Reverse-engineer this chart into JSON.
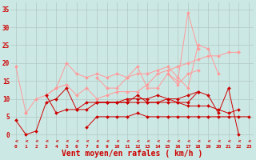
{
  "background_color": "#cce8e4",
  "grid_color": "#b0c8c4",
  "xlabel": "Vent moyen/en rafales ( km/h )",
  "xlabel_color": "#cc0000",
  "xlabel_fontsize": 7,
  "xtick_color": "#cc0000",
  "ytick_color": "#cc0000",
  "xlim": [
    -0.5,
    23.5
  ],
  "ylim": [
    -2.5,
    37
  ],
  "yticks": [
    0,
    5,
    10,
    15,
    20,
    25,
    30,
    35
  ],
  "xticks": [
    0,
    1,
    2,
    3,
    4,
    5,
    6,
    7,
    8,
    9,
    10,
    11,
    12,
    13,
    14,
    15,
    16,
    17,
    18,
    19,
    20,
    21,
    22,
    23
  ],
  "x_vals": [
    0,
    1,
    2,
    3,
    4,
    5,
    6,
    7,
    8,
    9,
    10,
    11,
    12,
    13,
    14,
    15,
    16,
    17,
    18,
    19,
    20,
    21,
    22,
    23
  ],
  "lines_dark": [
    [
      4,
      0,
      1,
      9,
      10,
      13,
      7,
      9,
      9,
      9,
      9,
      9,
      11,
      9,
      9,
      10,
      9,
      9,
      12,
      11,
      6,
      13,
      0,
      null
    ],
    [
      null,
      null,
      null,
      11,
      6,
      7,
      7,
      7,
      9,
      9,
      9,
      9,
      9,
      9,
      9,
      9,
      9,
      8,
      8,
      8,
      7,
      6,
      7,
      null
    ],
    [
      null,
      null,
      null,
      null,
      null,
      null,
      null,
      null,
      9,
      9,
      9,
      10,
      10,
      10,
      11,
      10,
      10,
      11,
      12,
      null,
      null,
      null,
      null,
      null
    ],
    [
      null,
      null,
      null,
      null,
      null,
      null,
      null,
      2,
      5,
      5,
      5,
      5,
      6,
      5,
      5,
      5,
      5,
      5,
      5,
      5,
      5,
      5,
      5,
      5
    ]
  ],
  "lines_light": [
    [
      19,
      6,
      null,
      11,
      13,
      20,
      17,
      16,
      17,
      16,
      17,
      16,
      17,
      17,
      18,
      19,
      16,
      13,
      25,
      24,
      17,
      null,
      23,
      null
    ],
    [
      null,
      null,
      null,
      null,
      null,
      null,
      null,
      null,
      null,
      null,
      null,
      null,
      null,
      null,
      null,
      17,
      15,
      34,
      24,
      null,
      null,
      null,
      null,
      null
    ],
    [
      null,
      null,
      null,
      null,
      null,
      null,
      null,
      null,
      16,
      13,
      13,
      16,
      19,
      13,
      13,
      17,
      14,
      17,
      18,
      null,
      null,
      null,
      null,
      null
    ],
    [
      null,
      6,
      10,
      11,
      13,
      14,
      11,
      13,
      10,
      11,
      12,
      12,
      12,
      14,
      17,
      18,
      19,
      20,
      21,
      22,
      22,
      23,
      23,
      null
    ]
  ],
  "dark_color": "#cc0000",
  "light_color": "#ff9999",
  "marker_size": 2.0,
  "line_width": 0.7
}
